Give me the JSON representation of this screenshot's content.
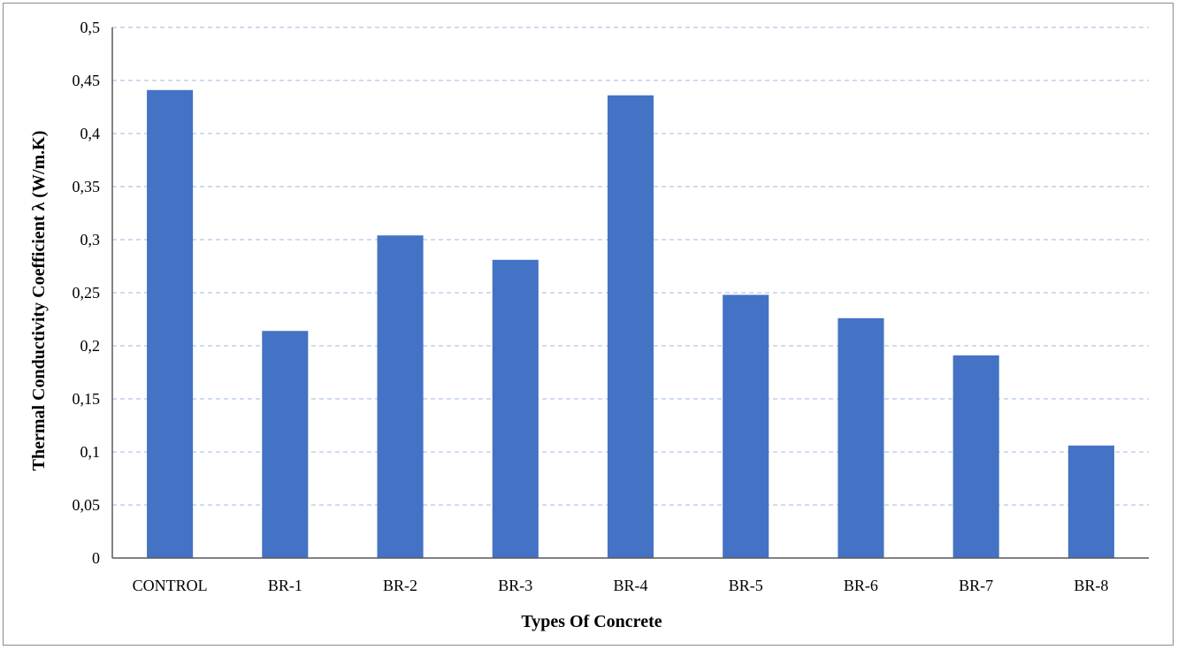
{
  "chart_data": {
    "type": "bar",
    "title": "",
    "xlabel": "Types Of Concrete",
    "ylabel": "Thermal Conductivity Coefficient λ (W/m.K)",
    "categories": [
      "CONTROL",
      "BR-1",
      "BR-2",
      "BR-3",
      "BR-4",
      "BR-5",
      "BR-6",
      "BR-7",
      "BR-8"
    ],
    "values": [
      0.441,
      0.214,
      0.304,
      0.281,
      0.436,
      0.248,
      0.226,
      0.191,
      0.106
    ],
    "ylim": [
      0,
      0.5
    ],
    "yticks": [
      0,
      0.05,
      0.1,
      0.15,
      0.2,
      0.25,
      0.3,
      0.35,
      0.4,
      0.45,
      0.5
    ],
    "ytick_labels": [
      "0",
      "0,05",
      "0,1",
      "0,15",
      "0,2",
      "0,25",
      "0,3",
      "0,35",
      "0,4",
      "0,45",
      "0,5"
    ],
    "grid": true,
    "legend": "none",
    "bar_color": "#4472c4",
    "grid_color": "#b4c7e7"
  }
}
